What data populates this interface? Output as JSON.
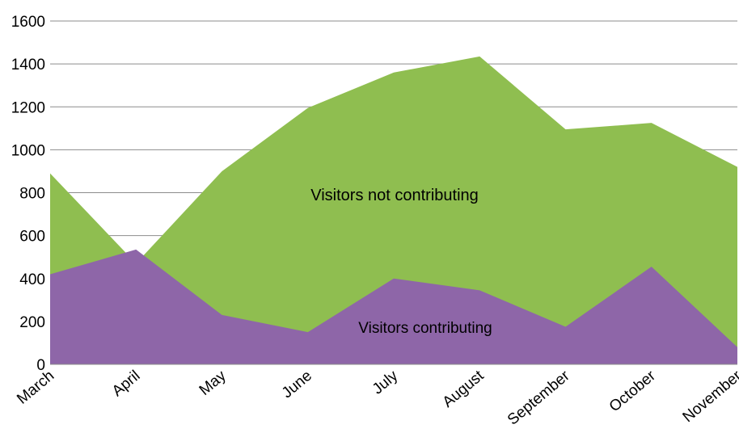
{
  "chart_data": {
    "type": "area",
    "categories": [
      "March",
      "April",
      "May",
      "June",
      "July",
      "August",
      "September",
      "October",
      "November"
    ],
    "series": [
      {
        "name": "Visitors contributing",
        "values": [
          420,
          535,
          230,
          150,
          400,
          345,
          175,
          455,
          80
        ],
        "color": "#8e66a8"
      },
      {
        "name": "Visitors not contributing",
        "values": [
          890,
          470,
          900,
          1195,
          1360,
          1435,
          1095,
          1125,
          920
        ],
        "color": "#8fbe50"
      }
    ],
    "ylim": [
      0,
      1600
    ],
    "yticks": [
      0,
      200,
      400,
      600,
      800,
      1000,
      1200,
      1400,
      1600
    ],
    "grid": true,
    "legend": "none"
  }
}
